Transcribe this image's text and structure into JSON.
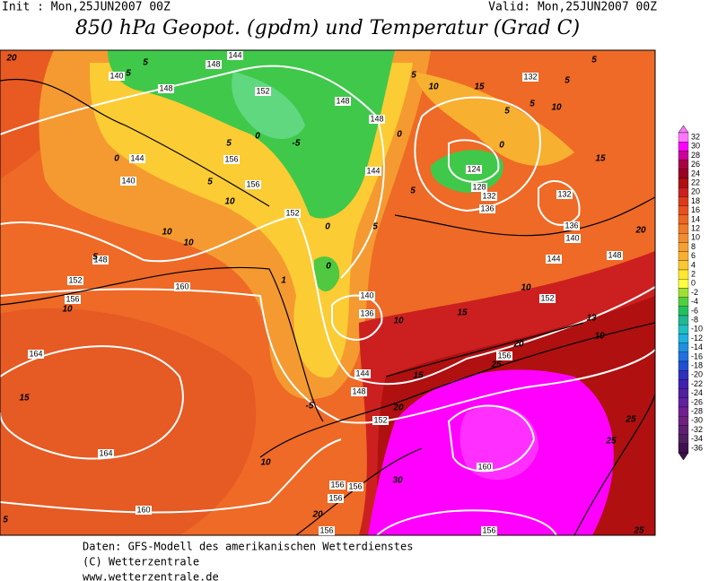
{
  "header": {
    "init": "Init : Mon,25JUN2007 00Z",
    "valid": "Valid: Mon,25JUN2007 00Z",
    "title": "850 hPa Geopot. (gpdm) und Temperatur (Grad C)"
  },
  "map": {
    "geopotential_labels": [
      140,
      148,
      144,
      148,
      152,
      148,
      148,
      144,
      156,
      140,
      156,
      152,
      144,
      132,
      124,
      128,
      132,
      136,
      132,
      136,
      140,
      144,
      148,
      148,
      152,
      156,
      160,
      140,
      136,
      152,
      164,
      144,
      148,
      152,
      156,
      164,
      160,
      160,
      156,
      156,
      156,
      156,
      156
    ],
    "temperature_labels": [
      20,
      5,
      5,
      0,
      5,
      0,
      -5,
      5,
      10,
      5,
      0,
      5,
      0,
      10,
      10,
      10,
      5,
      10,
      1,
      0,
      10,
      15,
      10,
      15,
      20,
      25,
      15,
      -5,
      20,
      10,
      20,
      30,
      25,
      25,
      13,
      10,
      20,
      15,
      10,
      15,
      5,
      5,
      5,
      5,
      5,
      0,
      5,
      25
    ]
  },
  "colorbar": {
    "levels": [
      32,
      30,
      28,
      26,
      24,
      22,
      20,
      18,
      16,
      14,
      12,
      10,
      8,
      6,
      4,
      2,
      0,
      -2,
      -4,
      -6,
      -8,
      -10,
      -12,
      -14,
      -16,
      -18,
      -20,
      -22,
      -24,
      -26,
      -28,
      -30,
      -32,
      -34,
      -36
    ],
    "colors": [
      "#ff77ff",
      "#ff00ff",
      "#cc0099",
      "#aa0044",
      "#990022",
      "#b01010",
      "#cc2020",
      "#dd3a1a",
      "#e85020",
      "#ee6622",
      "#f07a28",
      "#f28c30",
      "#f5a030",
      "#f8b030",
      "#fbc830",
      "#ffe830",
      "#ffff40",
      "#a0e030",
      "#50d040",
      "#20c060",
      "#20b890",
      "#20c0c0",
      "#20b0e0",
      "#2090e0",
      "#2070e0",
      "#2050d0",
      "#3030c0",
      "#4020b0",
      "#5020a0",
      "#6020a0",
      "#702090",
      "#702080",
      "#602070",
      "#502060",
      "#401050"
    ]
  },
  "footer": {
    "lines": [
      "Daten: GFS-Modell des amerikanischen Wetterdienstes",
      "(C) Wetterzentrale",
      "www.wetterzentrale.de"
    ]
  }
}
